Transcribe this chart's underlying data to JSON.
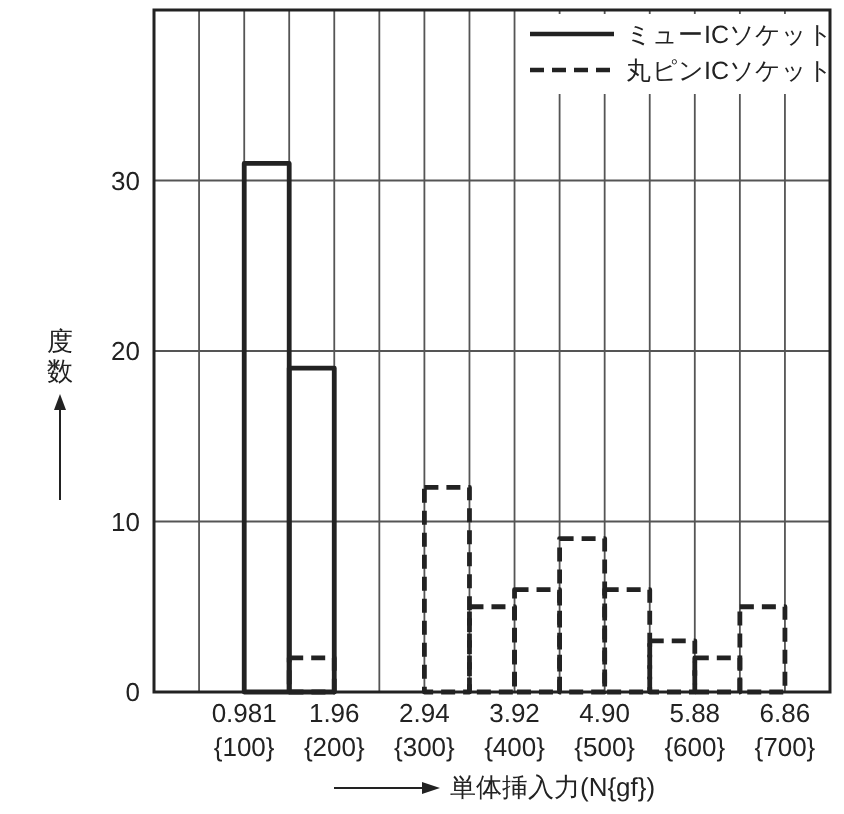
{
  "chart_data": {
    "type": "histogram",
    "xlabel": "単体挿入力(N{gf})",
    "ylabel": "度数",
    "bins": [
      0.981,
      1.47,
      1.96,
      2.45,
      2.94,
      3.43,
      3.92,
      4.41,
      4.9,
      5.39,
      5.88,
      6.37,
      6.86
    ],
    "series": [
      {
        "name": "ミューICソケット",
        "color": "#222222",
        "line_style": "solid",
        "values": [
          31,
          19,
          0,
          0,
          0,
          0,
          0,
          0,
          0,
          0,
          0,
          0
        ]
      },
      {
        "name": "丸ピンICソケット",
        "color": "#222222",
        "line_style": "dashed",
        "values": [
          0,
          2,
          0,
          0,
          12,
          5,
          6,
          9,
          6,
          3,
          2,
          5
        ]
      }
    ],
    "xlim": [
      0,
      7.35
    ],
    "xticks": [
      {
        "value": 0.49,
        "label": null
      },
      0.981,
      {
        "value": 1.47,
        "label": null
      },
      1.96,
      {
        "value": 2.45,
        "label": null
      },
      2.94,
      {
        "value": 3.43,
        "label": null
      },
      3.92,
      {
        "value": 4.41,
        "label": null
      },
      {
        "value": 4.9,
        "label": "4.90"
      },
      {
        "value": 5.39,
        "label": null
      },
      5.88,
      {
        "value": 6.37,
        "label": null
      },
      6.86
    ],
    "x2lim": [
      0,
      750
    ],
    "x2ticks": [
      {
        "value": 100,
        "label": "{100}"
      },
      {
        "value": 200,
        "label": "{200}"
      },
      {
        "value": 300,
        "label": "{300}"
      },
      {
        "value": 400,
        "label": "{400}"
      },
      {
        "value": 500,
        "label": "{500}"
      },
      {
        "value": 600,
        "label": "{600}"
      },
      {
        "value": 700,
        "label": "{700}"
      }
    ],
    "ylim": [
      0,
      40
    ],
    "yticks": [
      0,
      10,
      20,
      30
    ],
    "grid": true,
    "legend": "top right"
  }
}
